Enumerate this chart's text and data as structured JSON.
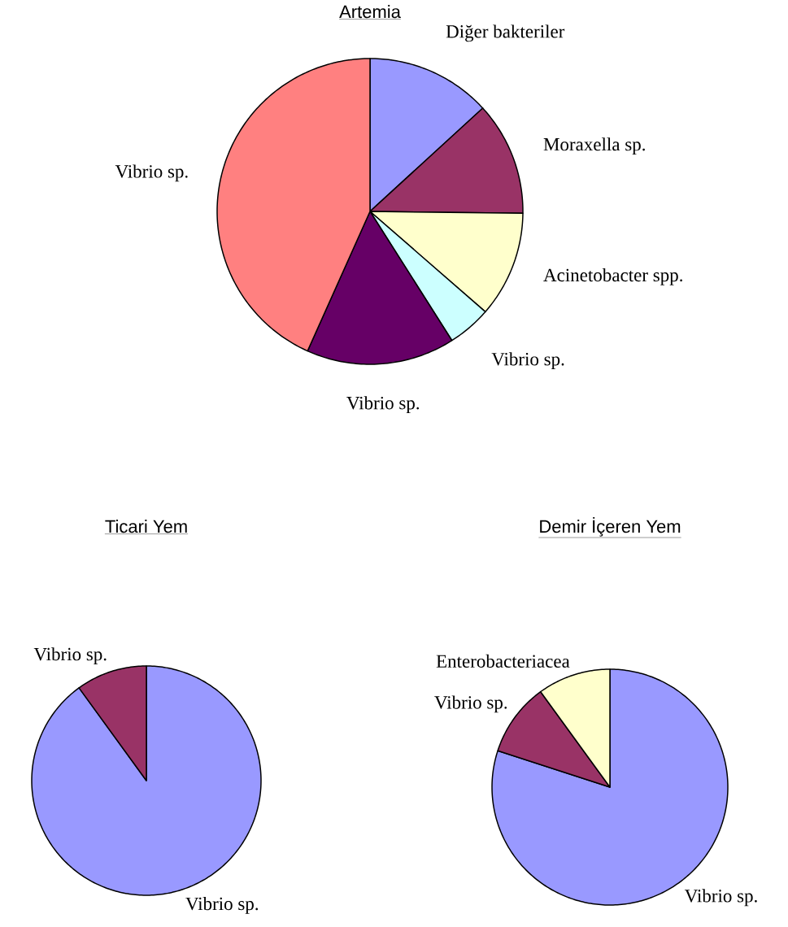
{
  "chart_data": [
    {
      "type": "pie",
      "title": "Artemia",
      "categories": [
        "Diğer bakteriler",
        "Moraxella sp.",
        "Acinetobacter spp.",
        "Vibrio sp.",
        "Vibrio sp.",
        "Vibrio sp."
      ],
      "values": [
        13.2,
        12,
        11.2,
        4.6,
        15.7,
        43.3
      ],
      "colors": [
        "#9999ff",
        "#993366",
        "#ffffcc",
        "#ccffff",
        "#660066",
        "#ff8080"
      ]
    },
    {
      "type": "pie",
      "title": "Ticari Yem",
      "categories": [
        "Vibrio sp.",
        "Vibrio sp."
      ],
      "values": [
        90,
        10
      ],
      "colors": [
        "#9999ff",
        "#993366"
      ]
    },
    {
      "type": "pie",
      "title": "Demir İçeren Yem",
      "categories": [
        "Vibrio sp.",
        "Vibrio sp.",
        "Enterobacteriacea"
      ],
      "values": [
        80,
        10,
        10
      ],
      "colors": [
        "#9999ff",
        "#993366",
        "#ffffcc"
      ]
    }
  ]
}
